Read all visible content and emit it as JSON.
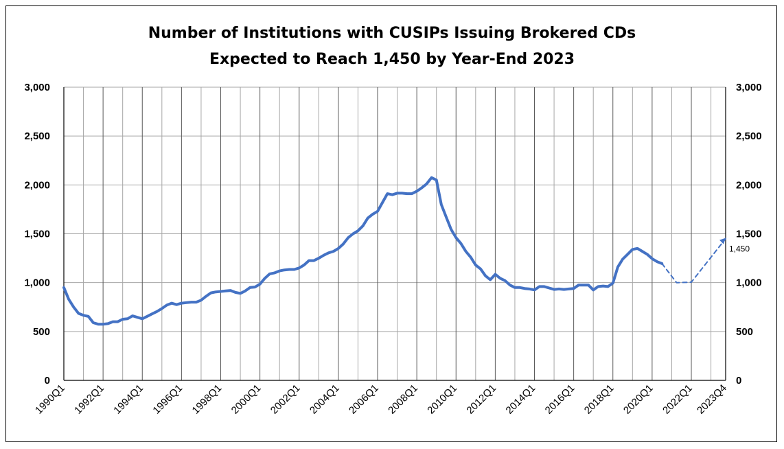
{
  "chart_data": {
    "type": "line",
    "title_line1": "Number of Institutions with CUSIPs Issuing Brokered CDs",
    "title_line2": "Expected to Reach 1,450 by Year-End 2023",
    "y_ticks": [
      "0",
      "500",
      "1,000",
      "1,500",
      "2,000",
      "2,500",
      "3,000"
    ],
    "y_tick_values": [
      0,
      500,
      1000,
      1500,
      2000,
      2500,
      3000
    ],
    "ylim": [
      0,
      3000
    ],
    "x_tick_labels": [
      "1990Q1",
      "1992Q1",
      "1994Q1",
      "1996Q1",
      "1998Q1",
      "2000Q1",
      "2002Q1",
      "2004Q1",
      "2006Q1",
      "2008Q1",
      "2010Q1",
      "2012Q1",
      "2014Q1",
      "2016Q1",
      "2018Q1",
      "2020Q1",
      "2022Q1",
      "2023Q4"
    ],
    "grid": "vertical gridlines every 4 quarters, horizontal gridlines every 500",
    "colors": {
      "line": "#4472C4",
      "grid": "#a6a6a6",
      "grid_dark": "#595959"
    },
    "series": [
      {
        "style": "solid",
        "x": [
          "1990Q1",
          "1990Q2",
          "1990Q3",
          "1990Q4",
          "1991Q1",
          "1991Q2",
          "1991Q3",
          "1991Q4",
          "1992Q1",
          "1992Q2",
          "1992Q3",
          "1992Q4",
          "1993Q1",
          "1993Q2",
          "1993Q3",
          "1993Q4",
          "1994Q1",
          "1994Q2",
          "1994Q3",
          "1994Q4",
          "1995Q1",
          "1995Q2",
          "1995Q3",
          "1995Q4",
          "1996Q1",
          "1996Q2",
          "1996Q3",
          "1996Q4",
          "1997Q1",
          "1997Q2",
          "1997Q3",
          "1997Q4",
          "1998Q1",
          "1998Q2",
          "1998Q3",
          "1998Q4",
          "1999Q1",
          "1999Q2",
          "1999Q3",
          "1999Q4",
          "2000Q1",
          "2000Q2",
          "2000Q3",
          "2000Q4",
          "2001Q1",
          "2001Q2",
          "2001Q3",
          "2001Q4",
          "2002Q1",
          "2002Q2",
          "2002Q3",
          "2002Q4",
          "2003Q1",
          "2003Q2",
          "2003Q3",
          "2003Q4",
          "2004Q1",
          "2004Q2",
          "2004Q3",
          "2004Q4",
          "2005Q1",
          "2005Q2",
          "2005Q3",
          "2005Q4",
          "2006Q1",
          "2006Q2",
          "2006Q3",
          "2006Q4",
          "2007Q1",
          "2007Q2",
          "2007Q3",
          "2007Q4",
          "2008Q1",
          "2008Q2",
          "2008Q3",
          "2008Q4",
          "2009Q1",
          "2009Q2",
          "2009Q3",
          "2009Q4",
          "2010Q1",
          "2010Q2",
          "2010Q3",
          "2010Q4",
          "2011Q1",
          "2011Q2",
          "2011Q3",
          "2011Q4",
          "2012Q1",
          "2012Q2",
          "2012Q3",
          "2012Q4",
          "2013Q1",
          "2013Q2",
          "2013Q3",
          "2013Q4",
          "2014Q1",
          "2014Q2",
          "2014Q3",
          "2014Q4",
          "2015Q1",
          "2015Q2",
          "2015Q3",
          "2015Q4",
          "2016Q1",
          "2016Q2",
          "2016Q3",
          "2016Q4",
          "2017Q1",
          "2017Q2",
          "2017Q3",
          "2017Q4",
          "2018Q1",
          "2018Q2",
          "2018Q3",
          "2018Q4",
          "2019Q1",
          "2019Q2",
          "2019Q3",
          "2019Q4",
          "2020Q1",
          "2020Q2",
          "2020Q3"
        ],
        "values": [
          950,
          830,
          750,
          685,
          665,
          655,
          590,
          575,
          575,
          580,
          600,
          600,
          625,
          630,
          660,
          645,
          630,
          655,
          680,
          705,
          735,
          770,
          790,
          775,
          790,
          795,
          800,
          800,
          820,
          860,
          895,
          905,
          910,
          915,
          920,
          900,
          890,
          915,
          950,
          955,
          985,
          1045,
          1090,
          1100,
          1120,
          1130,
          1135,
          1135,
          1150,
          1180,
          1225,
          1225,
          1250,
          1280,
          1305,
          1320,
          1350,
          1395,
          1460,
          1500,
          1530,
          1580,
          1660,
          1700,
          1730,
          1820,
          1910,
          1900,
          1915,
          1915,
          1910,
          1910,
          1935,
          1970,
          2010,
          2075,
          2050,
          1800,
          1670,
          1545,
          1460,
          1400,
          1320,
          1260,
          1180,
          1140,
          1070,
          1030,
          1085,
          1045,
          1020,
          975,
          950,
          950,
          940,
          935,
          925,
          960,
          960,
          945,
          930,
          935,
          930,
          935,
          940,
          975,
          975,
          975,
          925,
          960,
          965,
          960,
          995,
          1160,
          1240,
          1290,
          1340,
          1350,
          1320,
          1290,
          1245,
          1215,
          1195
        ]
      },
      {
        "style": "dashed",
        "x": [
          "2020Q3",
          "2021Q2",
          "2022Q1",
          "2023Q4"
        ],
        "values": [
          1195,
          1000,
          1005,
          1450
        ]
      }
    ],
    "annotations": [
      {
        "x": "2023Q4",
        "value": 1450,
        "label": "1,450"
      }
    ]
  }
}
